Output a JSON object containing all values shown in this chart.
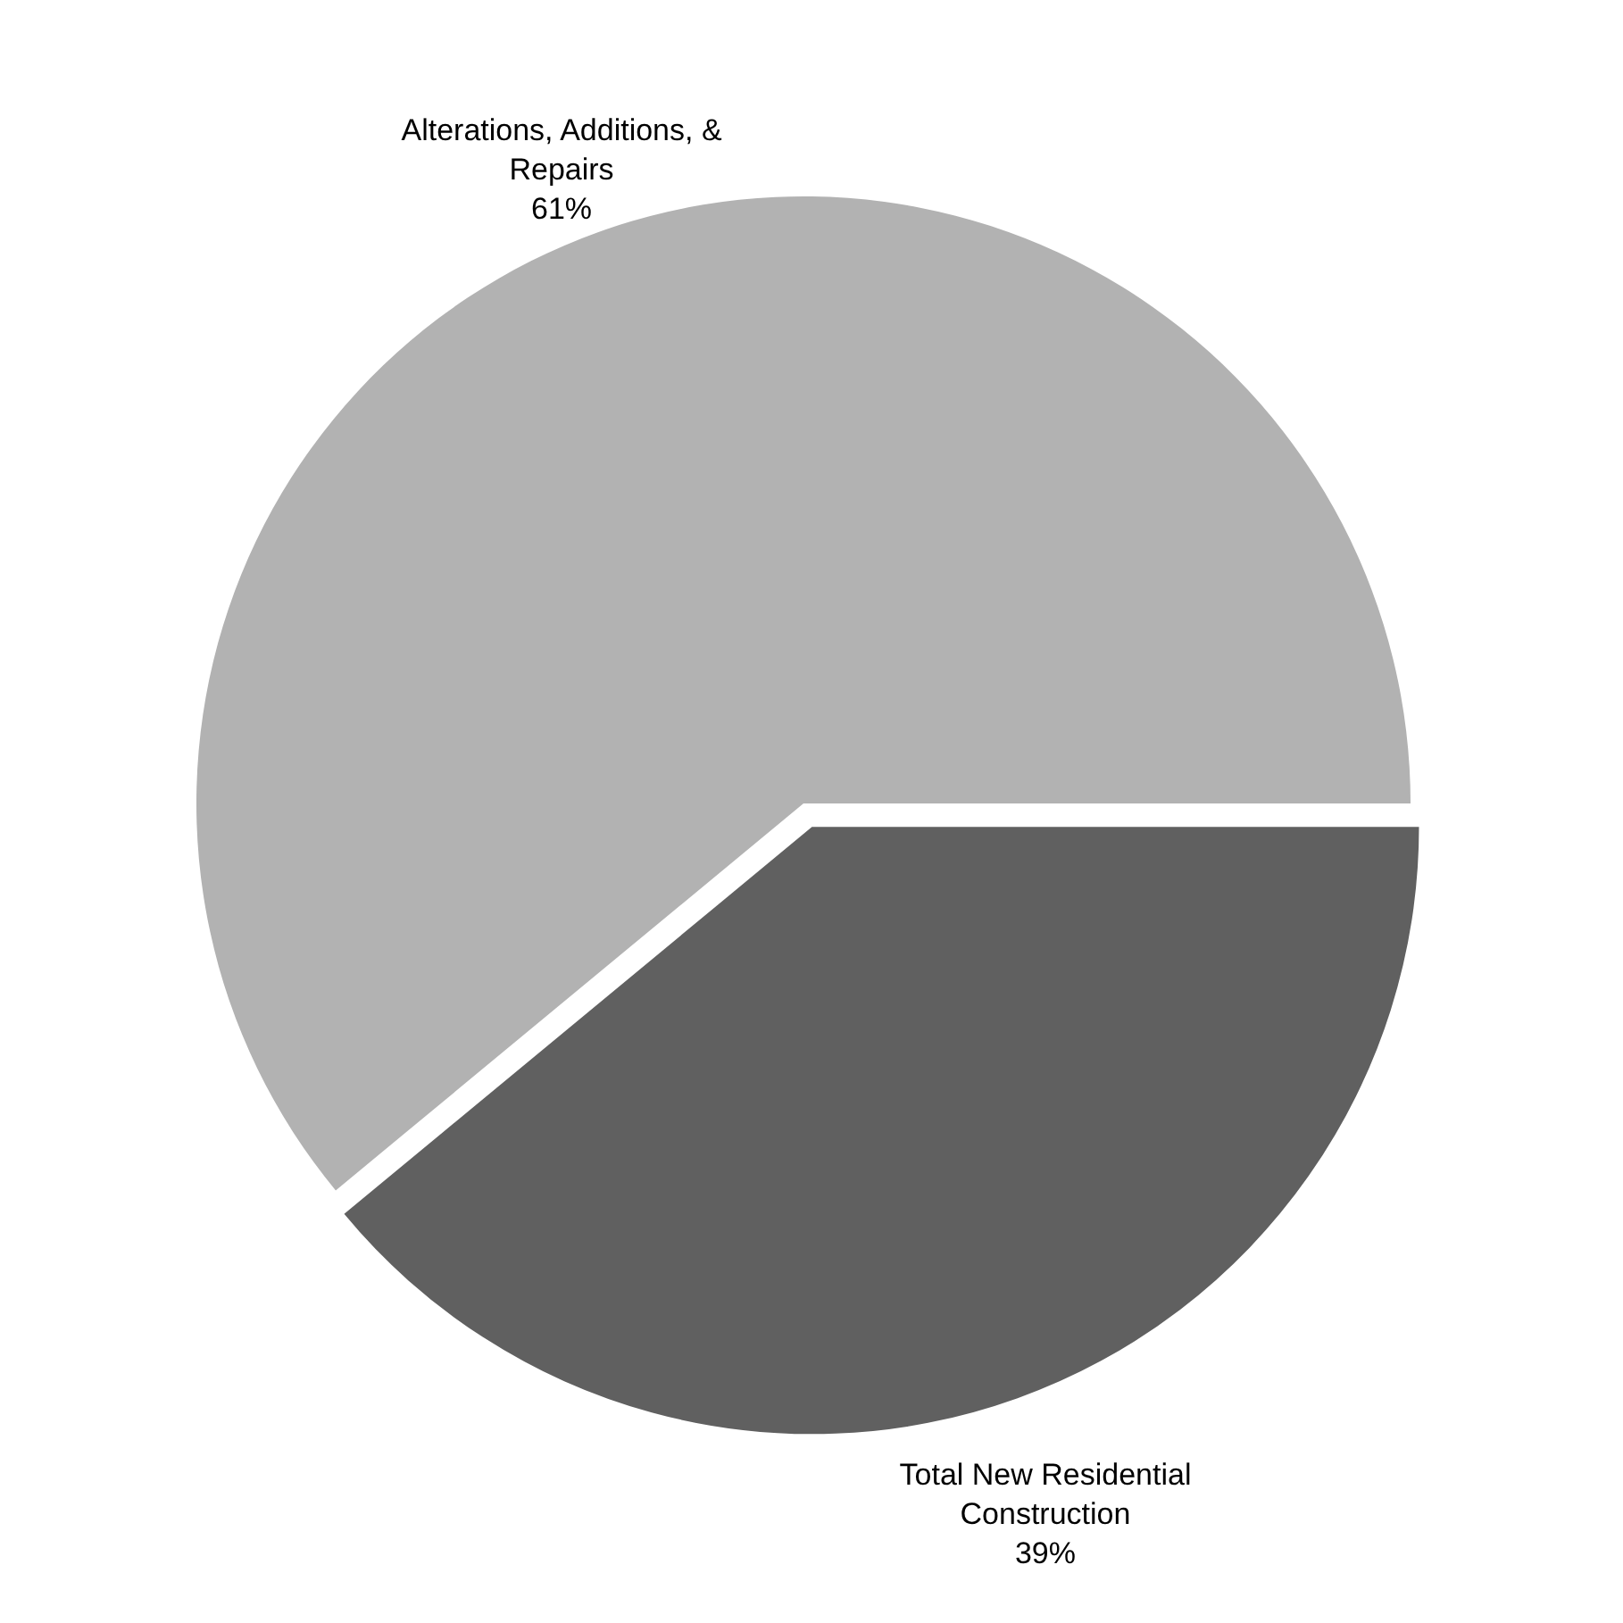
{
  "chart_data": {
    "type": "pie",
    "categories": [
      "Alterations, Additions, & Repairs",
      "Total New Residential Construction"
    ],
    "values": [
      61,
      39
    ],
    "colors": [
      "#b2b2b2",
      "#606060"
    ],
    "value_labels": [
      "61%",
      "39%"
    ]
  }
}
